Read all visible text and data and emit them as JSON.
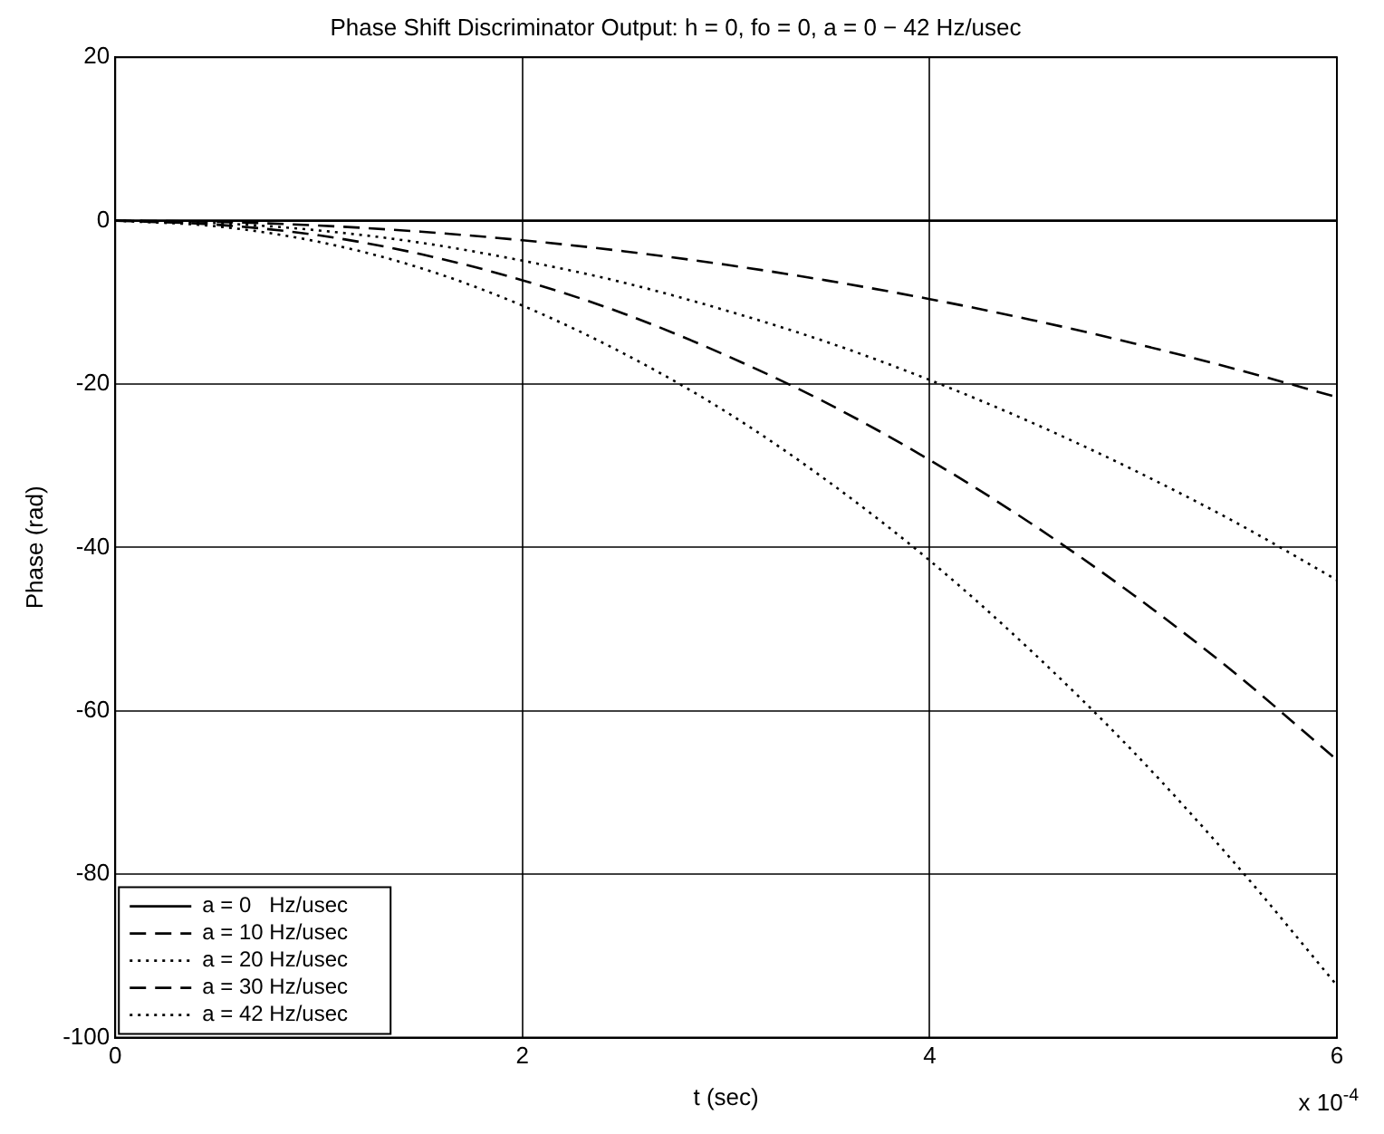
{
  "chart_data": {
    "type": "line",
    "title": "Phase Shift Discriminator Output: h = 0, fo = 0, a = 0 − 42 Hz/usec",
    "xlabel": "t (sec)",
    "ylabel": "Phase (rad)",
    "x": [
      0,
      0.5,
      1,
      1.5,
      2,
      2.5,
      3,
      3.5,
      4,
      4.5,
      5,
      5.5,
      6
    ],
    "series": [
      {
        "name": "a = 0   Hz/usec",
        "color": "#000000",
        "line_style": "solid",
        "values": [
          0,
          0,
          0,
          0,
          0,
          0,
          0,
          0,
          0,
          0,
          0,
          0,
          0
        ]
      },
      {
        "name": "a = 10 Hz/usec",
        "color": "#000000",
        "line_style": "dashed",
        "values": [
          0,
          -0.15,
          -0.6,
          -1.35,
          -2.4,
          -3.75,
          -5.4,
          -7.35,
          -9.6,
          -12.15,
          -15,
          -18.15,
          -21.6
        ]
      },
      {
        "name": "a = 20 Hz/usec",
        "color": "#000000",
        "line_style": "dotted",
        "values": [
          0,
          -0.3,
          -1.2,
          -2.7,
          -4.9,
          -7.6,
          -11,
          -14.9,
          -19.5,
          -24.7,
          -30.5,
          -36.9,
          -44
        ]
      },
      {
        "name": "a = 30 Hz/usec",
        "color": "#000000",
        "line_style": "dashed",
        "values": [
          0,
          -0.5,
          -1.8,
          -4.1,
          -7.3,
          -11.4,
          -16.5,
          -22.4,
          -29.3,
          -37.1,
          -45.8,
          -55.4,
          -66
        ]
      },
      {
        "name": "a = 42 Hz/usec",
        "color": "#000000",
        "line_style": "dotted",
        "values": [
          0,
          -0.7,
          -2.6,
          -5.8,
          -10.4,
          -16.3,
          -23.4,
          -31.9,
          -41.6,
          -52.7,
          -65,
          -78.7,
          -93.6
        ]
      }
    ],
    "xlim": [
      0,
      6
    ],
    "xticks": [
      0,
      2,
      4,
      6
    ],
    "ylim": [
      -100,
      20
    ],
    "yticks": [
      -100,
      -80,
      -60,
      -40,
      -20,
      0,
      20
    ],
    "annotations": [
      "x 10$^{-4}$"
    ],
    "grid": true,
    "legend": "bottom left",
    "marker": "none"
  }
}
